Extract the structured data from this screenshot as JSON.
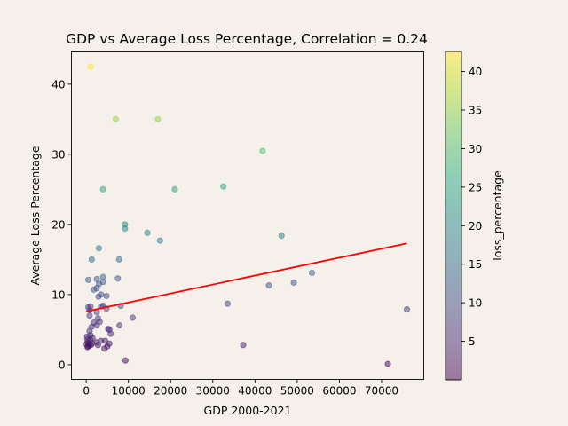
{
  "chart_data": {
    "type": "scatter",
    "title": "GDP vs Average Loss Percentage, Correlation = 0.24",
    "xlabel": "GDP 2000-2021",
    "ylabel": "Average Loss Percentage",
    "xlim": [
      -3500,
      80000
    ],
    "ylim": [
      -2.1,
      44.6
    ],
    "xticks": [
      0,
      10000,
      20000,
      30000,
      40000,
      50000,
      60000,
      70000
    ],
    "xtick_labels": [
      "0",
      "10000",
      "20000",
      "30000",
      "40000",
      "50000",
      "60000",
      "70000"
    ],
    "yticks": [
      0,
      10,
      20,
      30,
      40
    ],
    "ytick_labels": [
      "0",
      "10",
      "20",
      "30",
      "40"
    ],
    "grid": false,
    "colorbar": {
      "label": "loss_percentage",
      "colormap": "viridis",
      "alpha": 0.5,
      "range": [
        0,
        42.6
      ],
      "ticks": [
        5,
        10,
        15,
        20,
        25,
        30,
        35,
        40
      ],
      "tick_labels": [
        "5",
        "10",
        "15",
        "20",
        "25",
        "30",
        "35",
        "40"
      ]
    },
    "trendline": {
      "color": "#ff0000",
      "points": [
        [
          0,
          7.6
        ],
        [
          76000,
          17.3
        ]
      ]
    },
    "points": [
      [
        1000,
        42.5
      ],
      [
        7000,
        35.0
      ],
      [
        17000,
        35.0
      ],
      [
        41800,
        30.5
      ],
      [
        32500,
        25.4
      ],
      [
        4000,
        25.0
      ],
      [
        21000,
        25.0
      ],
      [
        9200,
        20.0
      ],
      [
        9200,
        19.4
      ],
      [
        14500,
        18.8
      ],
      [
        46300,
        18.4
      ],
      [
        17500,
        17.7
      ],
      [
        3000,
        16.6
      ],
      [
        1300,
        15.0
      ],
      [
        7800,
        15.0
      ],
      [
        2500,
        12.2
      ],
      [
        4000,
        12.5
      ],
      [
        7500,
        12.3
      ],
      [
        500,
        12.1
      ],
      [
        4000,
        11.8
      ],
      [
        3000,
        11.5
      ],
      [
        2500,
        10.9
      ],
      [
        1800,
        10.7
      ],
      [
        43300,
        11.3
      ],
      [
        49200,
        11.7
      ],
      [
        53500,
        13.1
      ],
      [
        3500,
        10.0
      ],
      [
        2900,
        9.7
      ],
      [
        4800,
        9.8
      ],
      [
        33500,
        8.7
      ],
      [
        500,
        8.2
      ],
      [
        1000,
        8.3
      ],
      [
        3500,
        8.3
      ],
      [
        4000,
        8.4
      ],
      [
        8200,
        8.4
      ],
      [
        76000,
        7.9
      ],
      [
        800,
        7.8
      ],
      [
        2500,
        7.5
      ],
      [
        4800,
        8.0
      ],
      [
        800,
        7.0
      ],
      [
        11000,
        6.7
      ],
      [
        2800,
        6.6
      ],
      [
        3200,
        6.1
      ],
      [
        1800,
        6.0
      ],
      [
        2500,
        5.6
      ],
      [
        7900,
        5.6
      ],
      [
        1300,
        5.4
      ],
      [
        5200,
        5.1
      ],
      [
        5500,
        5.0
      ],
      [
        5800,
        4.4
      ],
      [
        800,
        4.8
      ],
      [
        1000,
        4.2
      ],
      [
        200,
        4.0
      ],
      [
        1500,
        3.8
      ],
      [
        300,
        3.6
      ],
      [
        1000,
        3.5
      ],
      [
        3500,
        3.4
      ],
      [
        4500,
        3.4
      ],
      [
        2500,
        3.2
      ],
      [
        5500,
        3.0
      ],
      [
        300,
        3.2
      ],
      [
        600,
        3.0
      ],
      [
        100,
        2.9
      ],
      [
        1400,
        3.0
      ],
      [
        37200,
        2.8
      ],
      [
        2800,
        2.8
      ],
      [
        400,
        2.6
      ],
      [
        700,
        2.7
      ],
      [
        1100,
        2.8
      ],
      [
        5000,
        2.6
      ],
      [
        300,
        2.5
      ],
      [
        4300,
        2.3
      ],
      [
        9300,
        0.6
      ],
      [
        71500,
        0.1
      ]
    ]
  }
}
